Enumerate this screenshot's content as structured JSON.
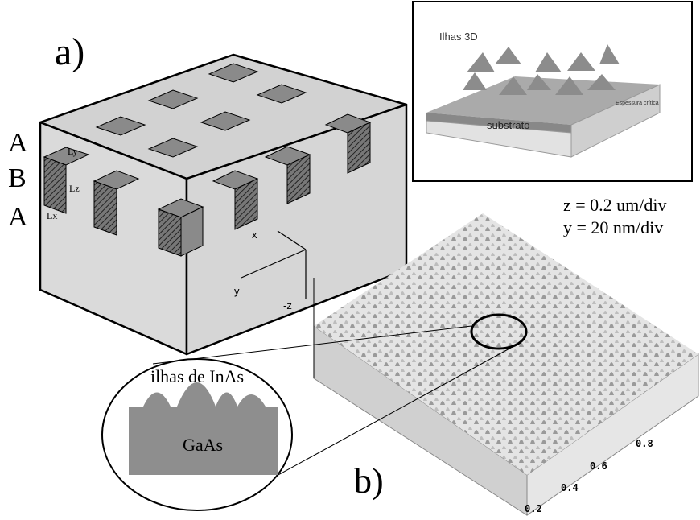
{
  "panel_a": {
    "label": "a)",
    "layers": [
      "A",
      "B",
      "A"
    ],
    "dims": [
      "Ly",
      "Lz",
      "Lx"
    ],
    "axes": [
      "x",
      "y",
      "-z"
    ]
  },
  "inset": {
    "islands": "Ilhas 3D",
    "thickness": "Espessura crítica",
    "substrate": "substrato"
  },
  "panel_b": {
    "label": "b)",
    "scale": [
      "z = 0.2 um/div",
      "y = 20 nm/div"
    ],
    "zoom_top": "ilhas de InAs",
    "zoom_bottom": "GaAs",
    "axis_labels": [
      "0.8",
      "0.6",
      "0.4",
      "0.2"
    ]
  }
}
